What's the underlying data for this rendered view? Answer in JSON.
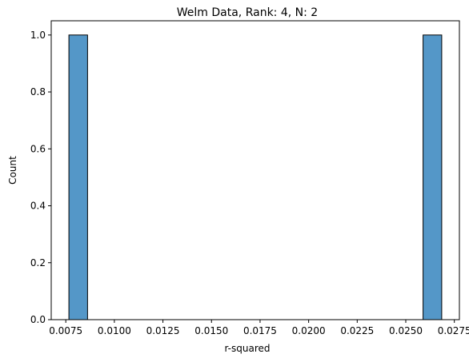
{
  "chart_data": {
    "type": "bar",
    "title": "Welm Data, Rank: 4, N: 2",
    "xlabel": "r-squared",
    "ylabel": "Count",
    "xlim": [
      0.00675,
      0.02776
    ],
    "ylim": [
      0,
      1.05
    ],
    "xticks": [
      "0.0075",
      "0.0100",
      "0.0125",
      "0.0150",
      "0.0175",
      "0.0200",
      "0.0225",
      "0.0250",
      "0.0275"
    ],
    "yticks": [
      "0.0",
      "0.2",
      "0.4",
      "0.6",
      "0.8",
      "1.0"
    ],
    "bins": [
      {
        "x0": 0.00766,
        "x1": 0.00862,
        "count": 1
      },
      {
        "x0": 0.02589,
        "x1": 0.02685,
        "count": 1
      }
    ],
    "bar_color": "#5497c8",
    "edge_color": "#000000",
    "grid": false,
    "legend": "none"
  }
}
